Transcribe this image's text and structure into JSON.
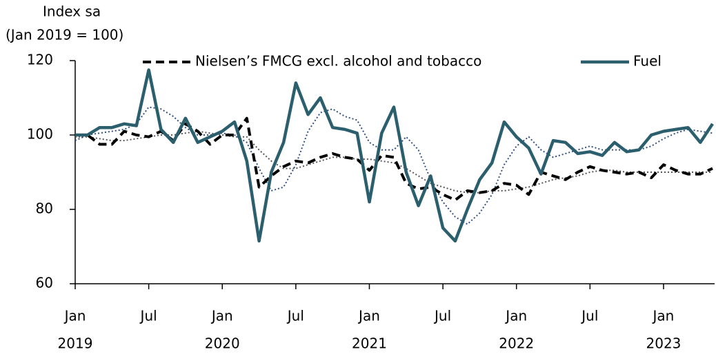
{
  "chart_data": {
    "type": "line",
    "y_axis_title": [
      "Index sa",
      "(Jan 2019 = 100)"
    ],
    "categories": [
      [
        "Jan",
        "2019"
      ],
      null,
      null,
      null,
      null,
      null,
      [
        "Jul"
      ],
      null,
      null,
      null,
      null,
      null,
      [
        "Jan",
        "2020"
      ],
      null,
      null,
      null,
      null,
      null,
      [
        "Jul"
      ],
      null,
      null,
      null,
      null,
      null,
      [
        "Jan",
        "2021"
      ],
      null,
      null,
      null,
      null,
      null,
      [
        "Jul"
      ],
      null,
      null,
      null,
      null,
      null,
      [
        "Jan",
        "2022"
      ],
      null,
      null,
      null,
      null,
      null,
      [
        "Jul"
      ],
      null,
      null,
      null,
      null,
      null,
      [
        "Jan",
        "2023"
      ],
      null,
      null,
      null,
      null
    ],
    "ylim": [
      60,
      120
    ],
    "yticks": [
      60,
      80,
      100,
      120
    ],
    "series": [
      {
        "name": "Nielsen’s FMCG excl. alcohol and tobacco",
        "color": "#000000",
        "line_style": "dashed",
        "values": [
          100,
          100,
          97.5,
          97.5,
          101,
          100,
          99.5,
          101,
          98.5,
          103,
          101,
          97.5,
          100,
          100,
          104.5,
          86,
          89,
          91.5,
          93,
          92.5,
          94,
          95,
          94,
          93.5,
          90.5,
          94.5,
          94,
          87,
          85.5,
          86,
          84,
          82.5,
          85,
          84.5,
          85,
          87,
          86.5,
          84,
          90,
          89,
          88,
          90,
          91.5,
          90.5,
          90,
          89.5,
          90,
          88.5,
          92,
          90.5,
          89.5,
          89.5,
          91
        ]
      },
      {
        "name": "Fuel",
        "color": "#2b5f6e",
        "line_style": "solid",
        "values": [
          100,
          100,
          102,
          102,
          103,
          102.5,
          117.5,
          101.5,
          98,
          104.5,
          98,
          99.5,
          101,
          103.5,
          93,
          71.5,
          90,
          98,
          114,
          105.5,
          110,
          102,
          101.5,
          100.5,
          82,
          100.5,
          107.5,
          90,
          81,
          89,
          75,
          71.5,
          80,
          88,
          92.5,
          103.5,
          99.5,
          96.5,
          89.5,
          98.5,
          98,
          95,
          95.5,
          94.5,
          98,
          95.5,
          96,
          100,
          101,
          101.5,
          102,
          98,
          103
        ]
      },
      {
        "color": "#555555",
        "line_style": "dotted",
        "values": [
          99.5,
          99.5,
          99,
          98.5,
          98.5,
          99,
          99.5,
          100,
          100,
          100.5,
          101,
          100.5,
          100,
          99.5,
          99.5,
          96,
          93,
          91,
          91,
          92,
          93,
          94,
          94,
          93.5,
          93.5,
          93,
          92.5,
          91,
          89,
          87,
          86,
          85,
          84.5,
          84.5,
          85,
          85,
          85.5,
          86,
          87,
          88,
          88.5,
          89,
          90,
          90.5,
          90.5,
          90,
          90,
          90,
          90,
          90,
          90,
          90,
          90
        ]
      },
      {
        "color": "#2f4f7f",
        "line_style": "dotted",
        "values": [
          98.5,
          100,
          100.5,
          101,
          101.5,
          103,
          107.5,
          107,
          105,
          102,
          100,
          100,
          100.5,
          100,
          98,
          91,
          85,
          86,
          92,
          101,
          106,
          107,
          105,
          104,
          98,
          96,
          96,
          99.5,
          96,
          88,
          82,
          78,
          76,
          79,
          84,
          92,
          97,
          99.5,
          96,
          94,
          95,
          96,
          97,
          96,
          96,
          96,
          96,
          97,
          99,
          100.5,
          101.5,
          101,
          100.5
        ]
      }
    ]
  }
}
